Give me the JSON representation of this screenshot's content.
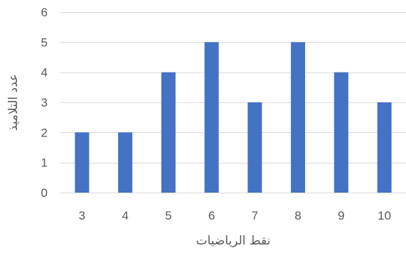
{
  "chart_data": {
    "type": "bar",
    "categories": [
      "3",
      "4",
      "5",
      "6",
      "7",
      "8",
      "9",
      "10"
    ],
    "values": [
      2,
      2,
      4,
      5,
      3,
      5,
      4,
      3
    ],
    "xlabel": "نقط الرياضيات",
    "ylabel": "عدد التلاميذ",
    "ylim": [
      0,
      6
    ],
    "yticks": [
      "0",
      "1",
      "2",
      "3",
      "4",
      "5",
      "6"
    ],
    "grid": true,
    "legend": "none",
    "colors": {
      "bar": "#4472C4",
      "grid": "#D9D9D9",
      "text": "#595959"
    }
  }
}
